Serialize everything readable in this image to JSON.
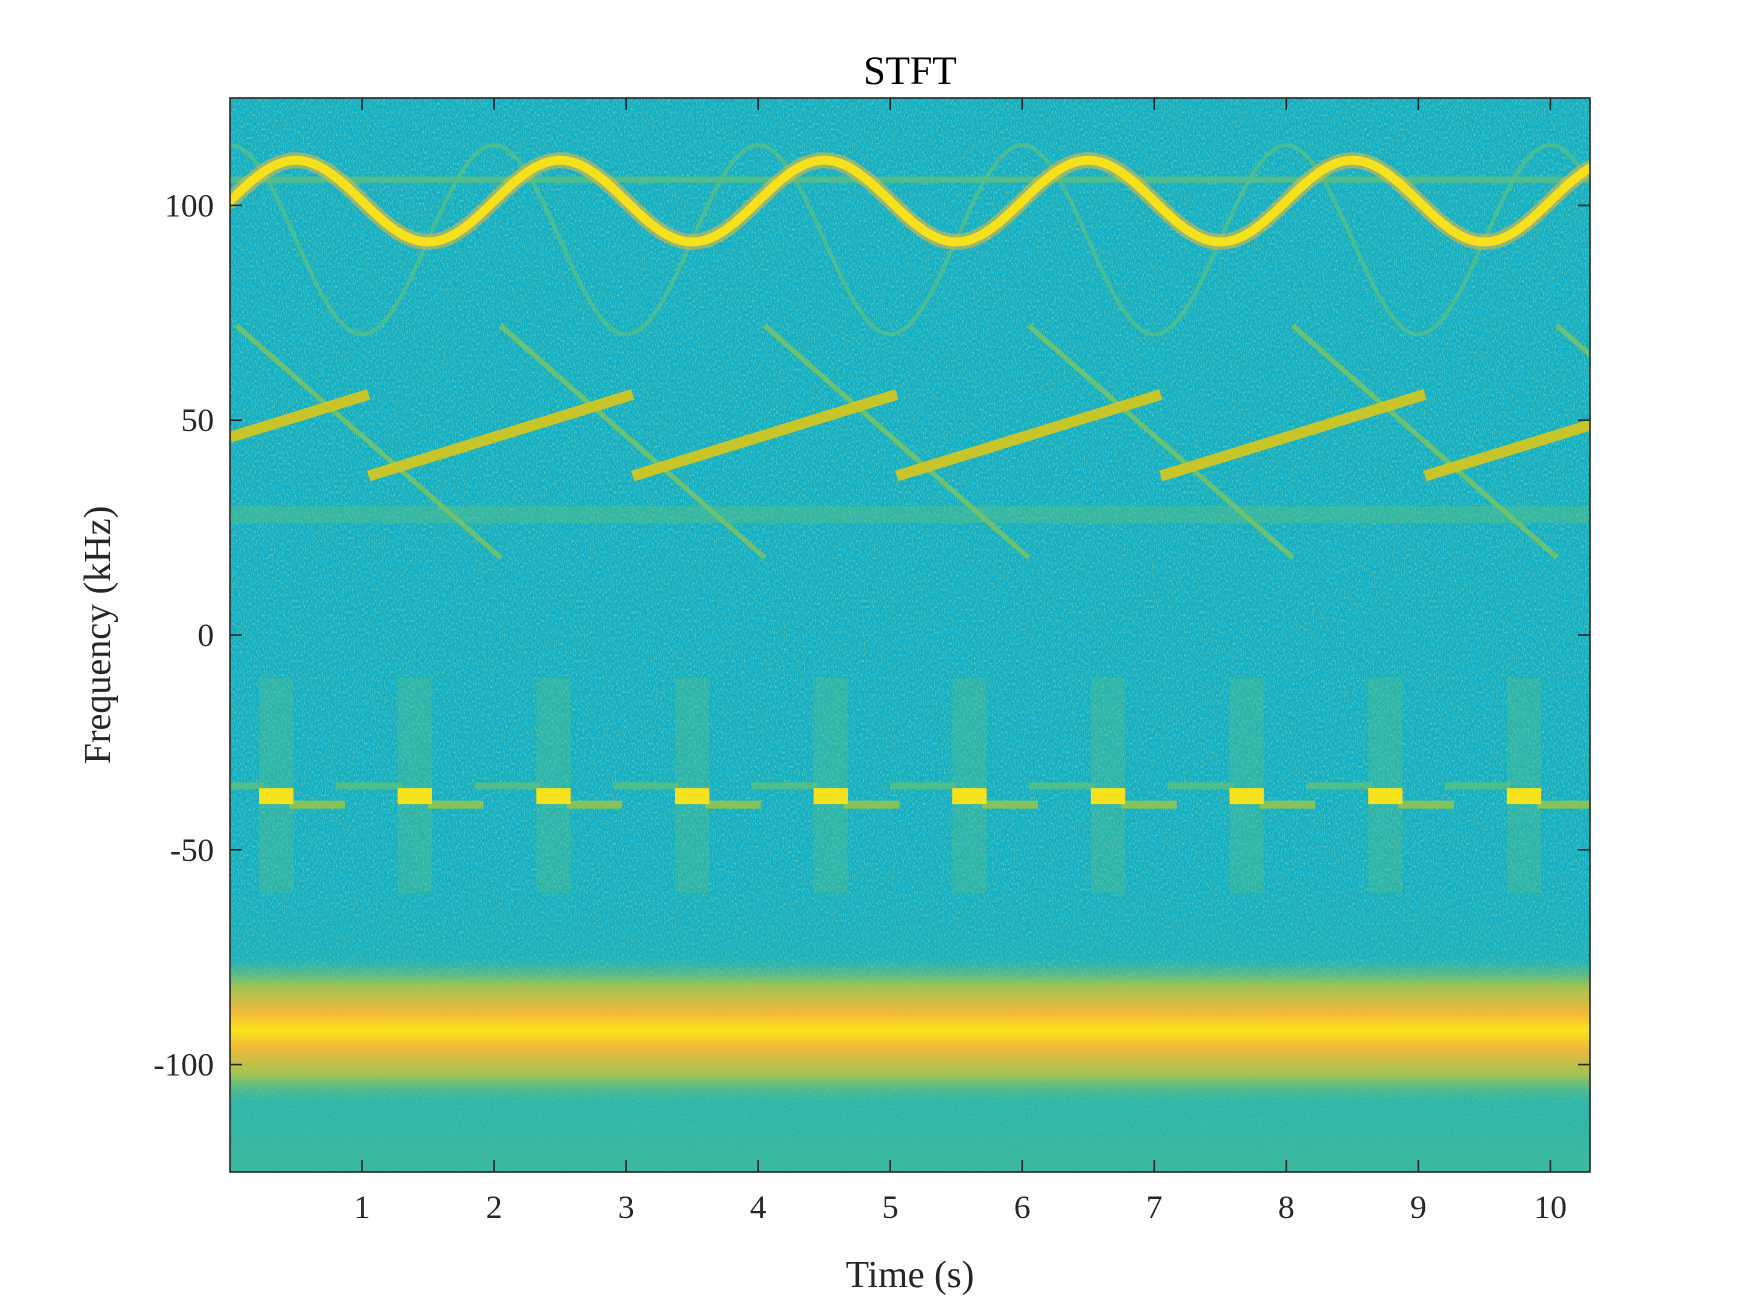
{
  "chart_data": {
    "type": "heatmap",
    "title": "STFT",
    "xlabel": "Time (s)",
    "ylabel": "Frequency (kHz)",
    "xlim": [
      0,
      10.3
    ],
    "ylim": [
      -125,
      125
    ],
    "xticks": [
      1,
      2,
      3,
      4,
      5,
      6,
      7,
      8,
      9,
      10
    ],
    "xtick_labels": [
      "1",
      "2",
      "3",
      "4",
      "5",
      "6",
      "7",
      "8",
      "9",
      "10"
    ],
    "yticks": [
      100,
      50,
      0,
      -50,
      -100
    ],
    "ytick_labels": [
      "100",
      "50",
      "0",
      "-50",
      "-100"
    ],
    "colormap": "parula",
    "grid": false,
    "colors": {
      "background": "#12aec3",
      "noise_green": "#5cc080",
      "strong_yellow": "#f5e21c",
      "orange": "#f2b83a"
    },
    "components": {
      "sinusoidal_fm": {
        "center_khz": 101,
        "amplitude_khz": 9.5,
        "period_s": 2.0,
        "start_s": 0,
        "end_s": 10.3
      },
      "sine_harmonic_ghost": {
        "center_khz": 92,
        "amplitude_khz": 22,
        "period_s": 2.0
      },
      "constant_tone_khz": 106,
      "up_chirp": {
        "start_khz": 37,
        "end_khz": 56,
        "period_s": 2.0,
        "offset_s": -1.0
      },
      "down_chirp": {
        "start_khz": 72,
        "end_khz": 18,
        "period_s": 2.0,
        "offset_s": 0.0
      },
      "horizontal_band_khz": 28,
      "pulse_train": {
        "centers_s": [
          0.35,
          1.4,
          2.45,
          3.5,
          4.55,
          5.6,
          6.65,
          7.7,
          8.75,
          9.8
        ],
        "pulse_khz": -37.5,
        "left_tone_khz": -35,
        "right_tone_khz": -39.5
      },
      "broadband_noise_band": {
        "center_khz": -92,
        "half_width_khz": 17
      }
    }
  }
}
